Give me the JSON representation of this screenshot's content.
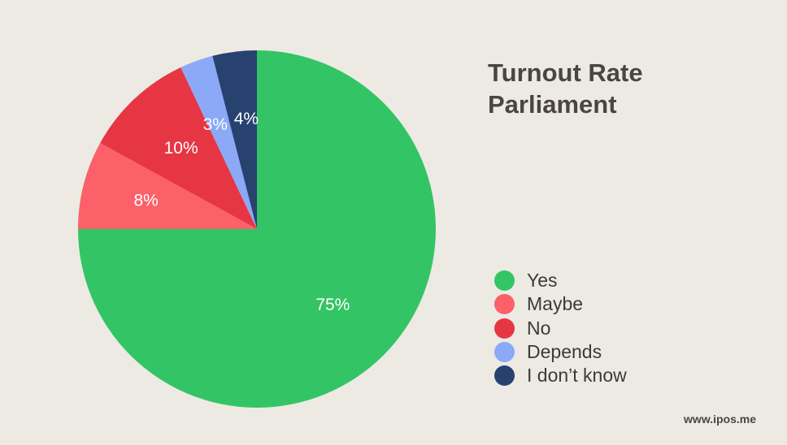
{
  "title": {
    "line1": "Turnout Rate",
    "line2": "Parliament"
  },
  "watermark": "www.ipos.me",
  "chart_data": {
    "type": "pie",
    "title": "Turnout Rate Parliament",
    "start": "12 o'clock, clockwise",
    "legend_position": "right",
    "slices": [
      {
        "name": "Yes",
        "value": 75,
        "label": "75%",
        "color": "#33c565"
      },
      {
        "name": "Maybe",
        "value": 8,
        "label": "8%",
        "color": "#fc6169"
      },
      {
        "name": "No",
        "value": 10,
        "label": "10%",
        "color": "#e73643"
      },
      {
        "name": "Depends",
        "value": 3,
        "label": "3%",
        "color": "#8ba9f7"
      },
      {
        "name": "I don’t know",
        "value": 4,
        "label": "4%",
        "color": "#284270"
      }
    ]
  }
}
